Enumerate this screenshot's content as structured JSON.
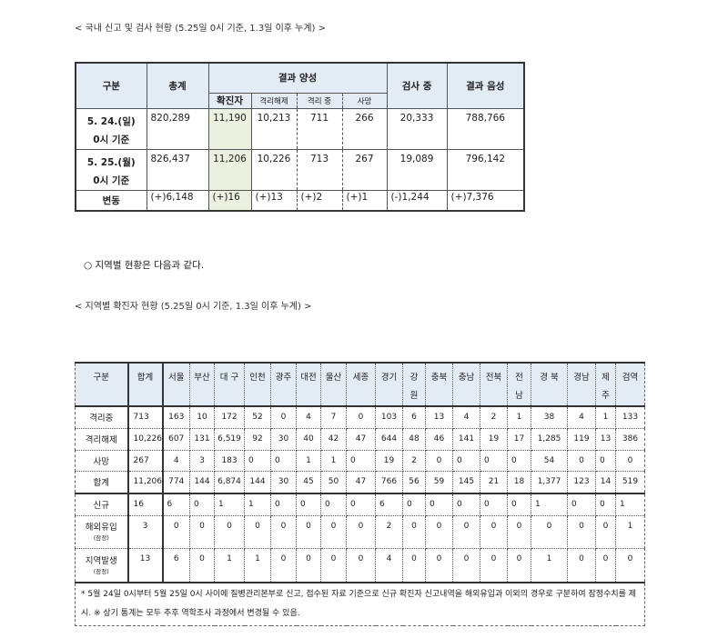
{
  "national": {
    "caption": "< 국내 신고 및 검사 현황 (5.25일 0시 기준, 1.3일 이후 누계) >",
    "headers": {
      "category": "구분",
      "total": "총계",
      "positive": "결과 양성",
      "confirmed": "확진자",
      "released": "격리해제",
      "isolated": "격리 중",
      "deaths": "사망",
      "testing": "검사 중",
      "negative": "결과 음성"
    },
    "rows": [
      {
        "label1": "5. 24.(일)",
        "label2": "0시 기준",
        "total": "820,289",
        "confirmed": "11,190",
        "released": "10,213",
        "isolated": "711",
        "deaths": "266",
        "testing": "20,333",
        "negative": "788,766"
      },
      {
        "label1": "5. 25.(월)",
        "label2": "0시 기준",
        "total": "826,437",
        "confirmed": "11,206",
        "released": "10,226",
        "isolated": "713",
        "deaths": "267",
        "testing": "19,089",
        "negative": "796,142"
      },
      {
        "label1": "변동",
        "label2": "",
        "total": "(+)6,148",
        "confirmed": "(+)16",
        "released": "(+)13",
        "isolated": "(+)2",
        "deaths": "(+)1",
        "testing": "(-)1,244",
        "negative": "(+)7,376"
      }
    ]
  },
  "bullet": "○ 지역별 현황은 다음과 같다.",
  "regional": {
    "caption": "< 지역별 확진자 현황 (5.25일 0시 기준, 1.3일 이후 누계) >",
    "headers": [
      "구분",
      "합계",
      "서울",
      "부산",
      "대 구",
      "인천",
      "광주",
      "대전",
      "울산",
      "세종",
      "경기",
      "강원",
      "충북",
      "충남",
      "전북",
      "전남",
      "경 북",
      "경남",
      "제 주",
      "검역"
    ],
    "rows": [
      {
        "label": "격리중",
        "sub": "",
        "values": [
          "713",
          "163",
          "10",
          "172",
          "52",
          "0",
          "4",
          "7",
          "0",
          "103",
          "6",
          "13",
          "4",
          "2",
          "1",
          "38",
          "4",
          "1",
          "133"
        ]
      },
      {
        "label": "격리해제",
        "sub": "",
        "values": [
          "10,226",
          "607",
          "131",
          "6,519",
          "92",
          "30",
          "40",
          "42",
          "47",
          "644",
          "48",
          "46",
          "141",
          "19",
          "17",
          "1,285",
          "119",
          "13",
          "386"
        ]
      },
      {
        "label": "사망",
        "sub": "",
        "values": [
          "267",
          "4",
          "3",
          "183",
          "0",
          "0",
          "1",
          "1",
          "0",
          "19",
          "2",
          "0",
          "0",
          "0",
          "0",
          "54",
          "0",
          "0",
          "0"
        ]
      },
      {
        "label": "합계",
        "sub": "",
        "values": [
          "11,206",
          "774",
          "144",
          "6,874",
          "144",
          "30",
          "45",
          "50",
          "47",
          "766",
          "56",
          "59",
          "145",
          "21",
          "18",
          "1,377",
          "123",
          "14",
          "519"
        ]
      },
      {
        "label": "신규",
        "sub": "",
        "values": [
          "16",
          "6",
          "0",
          "1",
          "1",
          "0",
          "0",
          "0",
          "0",
          "6",
          "0",
          "0",
          "0",
          "0",
          "0",
          "1",
          "0",
          "0",
          "1"
        ]
      },
      {
        "label": "해외유입",
        "sub": "(잠정)",
        "values": [
          "3",
          "0",
          "0",
          "0",
          "0",
          "0",
          "0",
          "0",
          "0",
          "2",
          "0",
          "0",
          "0",
          "0",
          "0",
          "0",
          "0",
          "0",
          "1"
        ]
      },
      {
        "label": "지역발생",
        "sub": "(잠정)",
        "values": [
          "13",
          "6",
          "0",
          "1",
          "1",
          "0",
          "0",
          "0",
          "0",
          "4",
          "0",
          "0",
          "0",
          "0",
          "0",
          "1",
          "0",
          "0",
          "0"
        ]
      }
    ],
    "note": "* 5월 24일 0시부터 5월 25일 0시 사이에 질병관리본부로 신고, 접수된 자료 기준으로 신규 확진자 신고내역을 해외유입과 이외의 경우로 구분하여 잠정수치를 제시. ※ 상기 통계는 모두 추후 역학조사 과정에서 변경될 수 있음."
  },
  "colors": {
    "header_bg": "#e3ebf5",
    "highlight": "#ebf1df"
  }
}
